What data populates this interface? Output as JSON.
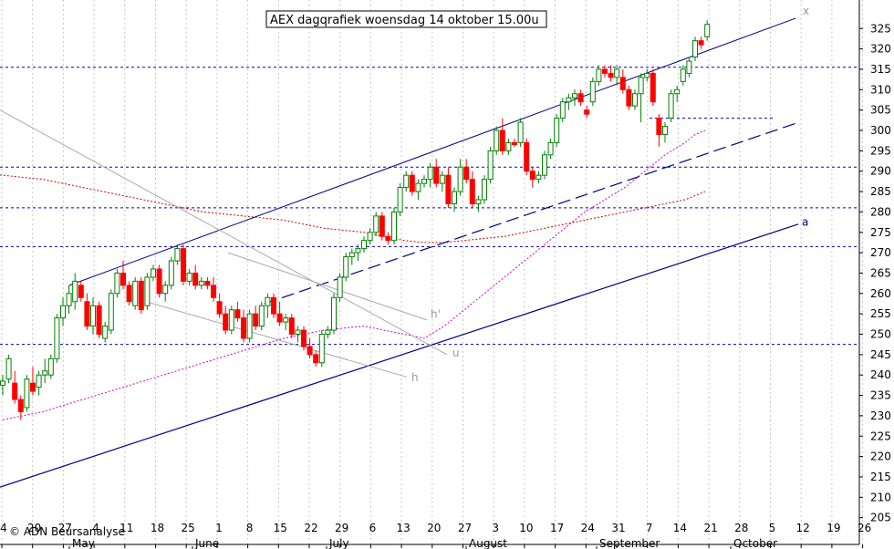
{
  "chart_data": {
    "type": "candlestick",
    "title": "AEX dagqrafiek woensdag 14 oktober 15.00u",
    "copyright": "© ADN Beursanalyse",
    "ylim": [
      200,
      328
    ],
    "y_ticks": [
      205,
      210,
      215,
      220,
      225,
      230,
      235,
      240,
      245,
      250,
      255,
      260,
      265,
      270,
      275,
      280,
      285,
      290,
      295,
      300,
      305,
      310,
      315,
      320,
      325
    ],
    "day_ticks": [
      "4",
      "20",
      "27",
      "4",
      "11",
      "18",
      "25",
      "1",
      "8",
      "15",
      "22",
      "29",
      "6",
      "13",
      "20",
      "27",
      "3",
      "10",
      "17",
      "24",
      "31",
      "7",
      "14",
      "21",
      "28",
      "5",
      "12",
      "19",
      "26"
    ],
    "months": [
      "May",
      "June",
      "July",
      "August",
      "September",
      "October"
    ],
    "horizontal_levels": [
      315.5,
      291.0,
      281.0,
      271.5,
      247.5
    ],
    "annotations": [
      "x",
      "a",
      "h'",
      "u",
      "h"
    ],
    "colors": {
      "up": "#008000",
      "down": "#ff0000",
      "channel": "#000080",
      "level": "#0000c0",
      "ma_long": "#cc0000",
      "ma_short": "#cc00cc",
      "trend_gray": "#aaaaaa",
      "grid": "#c8c8c8"
    },
    "candles": [
      [
        237.5,
        240.0,
        235.0,
        238.5
      ],
      [
        239.0,
        245.0,
        238.0,
        244.0
      ],
      [
        238.0,
        241.0,
        233.0,
        234.0
      ],
      [
        234.0,
        235.0,
        229.0,
        231.0
      ],
      [
        232.0,
        240.0,
        231.0,
        239.0
      ],
      [
        238.0,
        242.0,
        235.0,
        236.0
      ],
      [
        237.0,
        241.0,
        235.0,
        240.0
      ],
      [
        240.0,
        244.0,
        238.0,
        241.0
      ],
      [
        240.0,
        245.0,
        239.0,
        244.0
      ],
      [
        244.0,
        255.0,
        243.0,
        254.0
      ],
      [
        254.0,
        259.0,
        252.0,
        257.0
      ],
      [
        257.0,
        262.0,
        255.0,
        260.0
      ],
      [
        258.0,
        265.0,
        256.0,
        263.0
      ],
      [
        262.0,
        263.0,
        258.0,
        259.0
      ],
      [
        258.0,
        260.0,
        251.0,
        252.0
      ],
      [
        252.0,
        259.0,
        250.0,
        257.0
      ],
      [
        257.0,
        258.0,
        249.0,
        250.0
      ],
      [
        249.0,
        253.0,
        248.0,
        252.0
      ],
      [
        251.0,
        261.0,
        250.0,
        260.0
      ],
      [
        260.0,
        266.0,
        259.0,
        265.0
      ],
      [
        265.0,
        268.0,
        261.0,
        262.0
      ],
      [
        262.0,
        263.0,
        257.0,
        258.0
      ],
      [
        257.0,
        264.0,
        256.0,
        263.0
      ],
      [
        263.0,
        264.0,
        255.0,
        256.0
      ],
      [
        257.0,
        265.0,
        256.0,
        264.0
      ],
      [
        264.0,
        267.0,
        263.0,
        266.0
      ],
      [
        266.0,
        267.0,
        259.0,
        260.0
      ],
      [
        260.0,
        263.0,
        258.0,
        262.0
      ],
      [
        262.0,
        269.0,
        261.0,
        268.0
      ],
      [
        268.0,
        272.0,
        267.0,
        271.0
      ],
      [
        271.0,
        272.0,
        262.0,
        263.0
      ],
      [
        263.0,
        266.0,
        262.0,
        265.0
      ],
      [
        265.0,
        267.0,
        261.0,
        262.0
      ],
      [
        262.0,
        264.0,
        261.0,
        263.0
      ],
      [
        263.0,
        264.0,
        261.0,
        262.0
      ],
      [
        262.0,
        264.0,
        258.0,
        259.0
      ],
      [
        258.0,
        260.0,
        254.0,
        255.0
      ],
      [
        255.0,
        257.0,
        250.0,
        251.0
      ],
      [
        251.0,
        257.0,
        250.0,
        256.0
      ],
      [
        256.0,
        258.0,
        253.0,
        254.0
      ],
      [
        254.0,
        256.0,
        248.0,
        249.0
      ],
      [
        249.0,
        256.0,
        248.0,
        255.0
      ],
      [
        255.0,
        257.0,
        251.0,
        252.0
      ],
      [
        252.0,
        258.0,
        251.0,
        257.0
      ],
      [
        257.0,
        260.0,
        254.0,
        259.0
      ],
      [
        259.0,
        260.0,
        254.0,
        255.0
      ],
      [
        255.0,
        258.0,
        252.0,
        253.0
      ],
      [
        253.0,
        255.0,
        251.0,
        254.0
      ],
      [
        254.0,
        255.0,
        249.0,
        250.0
      ],
      [
        250.0,
        252.0,
        248.0,
        251.0
      ],
      [
        251.0,
        252.0,
        246.0,
        247.0
      ],
      [
        247.0,
        249.0,
        244.0,
        245.0
      ],
      [
        245.0,
        246.0,
        242.0,
        243.0
      ],
      [
        243.0,
        251.0,
        242.0,
        250.0
      ],
      [
        250.0,
        252.0,
        249.0,
        251.0
      ],
      [
        251.0,
        260.0,
        250.0,
        259.0
      ],
      [
        259.0,
        265.0,
        258.0,
        264.0
      ],
      [
        264.0,
        270.0,
        263.0,
        269.0
      ],
      [
        269.0,
        271.0,
        267.0,
        270.0
      ],
      [
        270.0,
        272.0,
        268.0,
        271.0
      ],
      [
        271.0,
        274.0,
        270.0,
        273.0
      ],
      [
        273.0,
        276.0,
        272.0,
        275.0
      ],
      [
        275.0,
        280.0,
        274.0,
        279.0
      ],
      [
        279.0,
        280.0,
        273.0,
        274.0
      ],
      [
        274.0,
        275.0,
        272.0,
        273.0
      ],
      [
        273.0,
        281.0,
        272.0,
        280.0
      ],
      [
        280.0,
        287.0,
        279.0,
        286.0
      ],
      [
        286.0,
        290.0,
        285.0,
        289.0
      ],
      [
        289.0,
        290.0,
        284.0,
        285.0
      ],
      [
        285.0,
        288.0,
        283.0,
        287.0
      ],
      [
        287.0,
        289.0,
        286.0,
        288.0
      ],
      [
        288.0,
        292.0,
        286.0,
        291.0
      ],
      [
        291.0,
        293.0,
        286.0,
        287.0
      ],
      [
        287.0,
        290.0,
        285.0,
        289.0
      ],
      [
        289.0,
        291.0,
        281.0,
        282.0
      ],
      [
        282.0,
        286.0,
        280.0,
        285.0
      ],
      [
        285.0,
        293.0,
        284.0,
        291.0
      ],
      [
        291.0,
        293.0,
        287.0,
        288.0
      ],
      [
        288.0,
        290.0,
        281.0,
        282.0
      ],
      [
        282.0,
        284.0,
        280.0,
        283.0
      ],
      [
        283.0,
        289.0,
        282.0,
        288.0
      ],
      [
        288.0,
        296.0,
        287.0,
        295.0
      ],
      [
        295.0,
        301.0,
        294.0,
        300.0
      ],
      [
        300.0,
        303.0,
        294.0,
        295.0
      ],
      [
        295.0,
        298.0,
        294.0,
        297.0
      ],
      [
        297.0,
        298.0,
        296.0,
        296.5
      ],
      [
        297.0,
        303.0,
        296.0,
        302.0
      ],
      [
        297.0,
        298.0,
        289.0,
        290.0
      ],
      [
        290.0,
        291.0,
        286.0,
        288.0
      ],
      [
        288.0,
        290.0,
        287.0,
        289.0
      ],
      [
        289.0,
        295.0,
        288.0,
        294.0
      ],
      [
        294.0,
        298.0,
        293.0,
        297.0
      ],
      [
        297.0,
        304.0,
        296.0,
        303.0
      ],
      [
        303.0,
        308.0,
        302.0,
        307.0
      ],
      [
        307.0,
        309.0,
        305.0,
        308.0
      ],
      [
        308.0,
        310.0,
        306.0,
        309.0
      ],
      [
        309.0,
        310.0,
        306.0,
        307.0
      ],
      [
        305.0,
        306.0,
        303.0,
        304.0
      ],
      [
        307.0,
        313.0,
        306.0,
        312.0
      ],
      [
        312.0,
        316.0,
        311.0,
        315.0
      ],
      [
        315.0,
        316.0,
        313.0,
        314.0
      ],
      [
        314.0,
        316.0,
        312.0,
        313.0
      ],
      [
        313.0,
        316.0,
        311.0,
        315.0
      ],
      [
        313.0,
        315.0,
        309.0,
        310.0
      ],
      [
        310.0,
        311.0,
        305.0,
        306.0
      ],
      [
        306.0,
        310.0,
        305.0,
        309.0
      ],
      [
        309.0,
        314.0,
        302.0,
        313.0
      ],
      [
        313.0,
        315.0,
        312.0,
        314.0
      ],
      [
        314.0,
        315.0,
        306.0,
        307.0
      ],
      [
        303.0,
        304.0,
        296.0,
        299.0
      ],
      [
        299.0,
        302.0,
        297.0,
        301.0
      ],
      [
        303.0,
        310.0,
        302.0,
        309.0
      ],
      [
        309.0,
        311.0,
        307.0,
        310.0
      ],
      [
        312.0,
        316.0,
        311.0,
        315.0
      ],
      [
        314.0,
        318.0,
        313.0,
        317.0
      ],
      [
        318.0,
        323.0,
        317.0,
        322.0
      ],
      [
        322.0,
        323.0,
        320.0,
        321.0
      ],
      [
        323.0,
        327.0,
        322.0,
        326.0
      ]
    ],
    "ma_long": [
      [
        -25,
        290
      ],
      [
        0,
        289
      ],
      [
        20,
        288
      ],
      [
        40,
        286
      ],
      [
        60,
        284
      ],
      [
        80,
        282
      ],
      [
        100,
        280
      ],
      [
        120,
        279
      ],
      [
        140,
        278
      ],
      [
        160,
        276
      ],
      [
        180,
        275
      ],
      [
        200,
        273
      ],
      [
        210,
        272.5
      ],
      [
        220,
        272.5
      ],
      [
        230,
        273
      ],
      [
        240,
        273.5
      ],
      [
        250,
        274
      ],
      [
        260,
        275
      ],
      [
        270,
        276
      ],
      [
        280,
        277
      ],
      [
        290,
        278
      ],
      [
        300,
        279
      ],
      [
        310,
        280
      ],
      [
        320,
        281
      ],
      [
        330,
        282
      ],
      [
        340,
        283
      ],
      [
        345,
        284
      ],
      [
        350,
        285
      ]
    ],
    "ma_short": [
      [
        0,
        229
      ],
      [
        20,
        231
      ],
      [
        40,
        234
      ],
      [
        60,
        237
      ],
      [
        80,
        240
      ],
      [
        100,
        243
      ],
      [
        120,
        246
      ],
      [
        140,
        249
      ],
      [
        160,
        251
      ],
      [
        180,
        252
      ],
      [
        200,
        250
      ],
      [
        210,
        249
      ],
      [
        220,
        252
      ],
      [
        230,
        256
      ],
      [
        240,
        260
      ],
      [
        250,
        264
      ],
      [
        260,
        268
      ],
      [
        270,
        272
      ],
      [
        280,
        276
      ],
      [
        290,
        280
      ],
      [
        300,
        283
      ],
      [
        310,
        286
      ],
      [
        320,
        290
      ],
      [
        330,
        294
      ],
      [
        340,
        297
      ],
      [
        345,
        299
      ],
      [
        350,
        300
      ]
    ]
  }
}
